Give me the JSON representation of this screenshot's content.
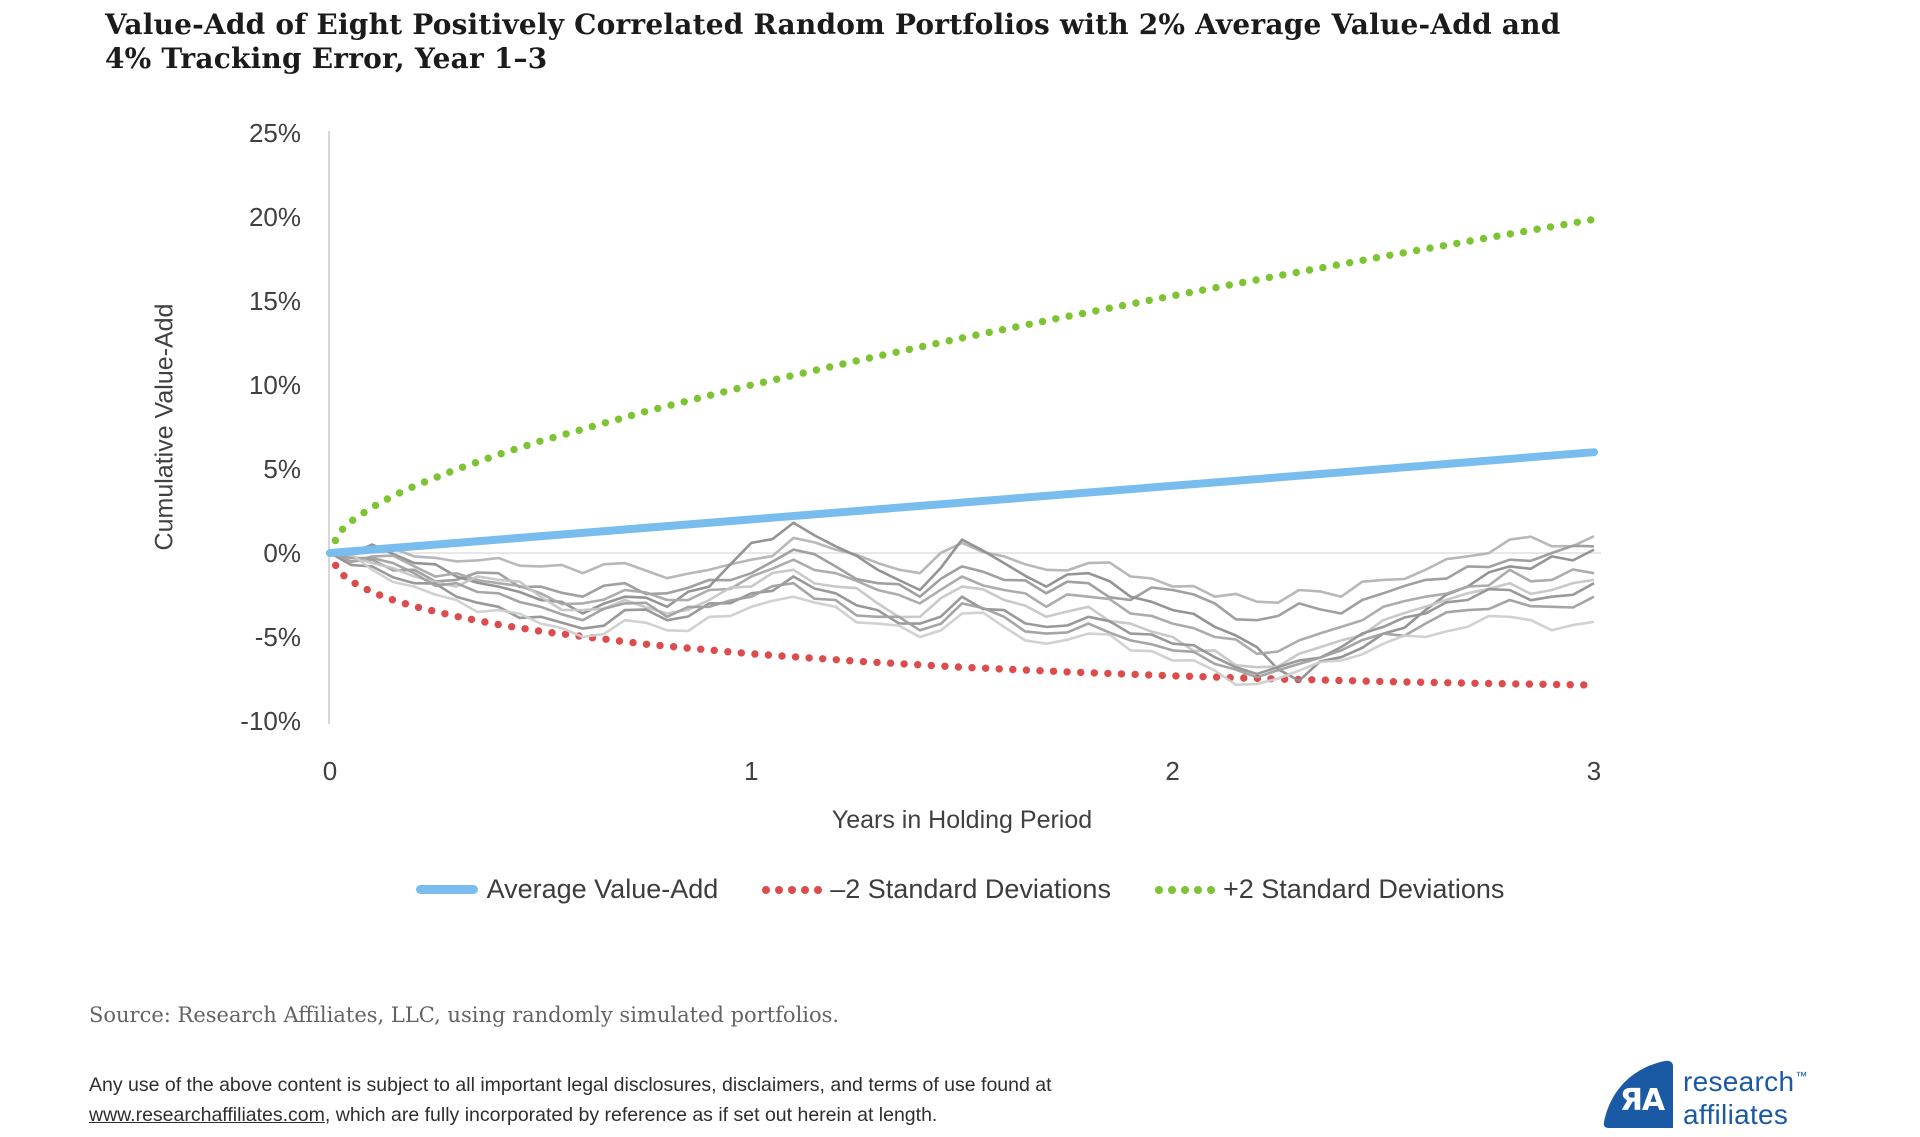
{
  "title": {
    "line1": "Value-Add of Eight Positively Correlated Random Portfolios with 2% Average Value-Add and",
    "line2": "4% Tracking Error, Year 1–3"
  },
  "chart_data": {
    "type": "line",
    "title": "Value-Add of Eight Positively Correlated Random Portfolios with 2% Average Value-Add and 4% Tracking Error, Year 1–3",
    "xlabel": "Years in Holding Period",
    "ylabel": "Cumulative Value-Add",
    "xlim": [
      0,
      3
    ],
    "ylim_pct": [
      -10,
      25
    ],
    "x_ticks": [
      0,
      1,
      2,
      3
    ],
    "y_ticks_pct": [
      25,
      20,
      15,
      10,
      5,
      0,
      -5,
      -10
    ],
    "grid": "zero-line-only",
    "legend_position": "bottom",
    "colors": {
      "grid": "#d9d9d9",
      "axis": "#c6c6c6",
      "tick_text": "#404040"
    },
    "series": [
      {
        "name": "Average Value-Add",
        "style": "solid",
        "color": "#79bcee",
        "x": [
          0,
          3
        ],
        "y_pct": [
          0,
          6
        ]
      },
      {
        "name": "–2 Standard Deviations",
        "style": "dotted",
        "color": "#dc4c4c",
        "t": [
          0,
          0.02,
          0.05,
          0.1,
          0.15,
          0.2,
          0.3,
          0.4,
          0.5,
          0.75,
          1,
          1.25,
          1.5,
          1.75,
          2,
          2.25,
          2.5,
          2.75,
          3
        ],
        "y_pct": [
          0,
          -1.09,
          -1.69,
          -2.33,
          -2.8,
          -3.18,
          -3.78,
          -4.26,
          -4.66,
          -5.43,
          -6.0,
          -6.44,
          -6.8,
          -7.08,
          -7.31,
          -7.5,
          -7.65,
          -7.77,
          -7.86
        ]
      },
      {
        "name": "+2 Standard Deviations",
        "style": "dotted",
        "color": "#7dc433",
        "t": [
          0,
          0.02,
          0.05,
          0.1,
          0.15,
          0.2,
          0.3,
          0.4,
          0.5,
          0.75,
          1,
          1.25,
          1.5,
          1.75,
          2,
          2.25,
          2.5,
          2.75,
          3
        ],
        "y_pct": [
          0,
          1.17,
          1.89,
          2.73,
          3.4,
          3.98,
          4.98,
          5.86,
          6.66,
          8.43,
          10.0,
          11.44,
          12.8,
          14.08,
          15.31,
          16.5,
          17.65,
          18.77,
          19.86
        ]
      }
    ],
    "portfolios": {
      "note": "eight positively correlated simulated portfolios, cumulative value-add in % sampled every 0.1 year",
      "t_step": 0.1,
      "texture_jitter_pct": 0.45,
      "colors": [
        "#b4b4b4",
        "#9b9b9b",
        "#8e8e8e",
        "#a8a8a8",
        "#c6c6c6",
        "#939393",
        "#a0a0a0",
        "#cfcfcf"
      ],
      "series": [
        {
          "values_pct": [
            0,
            0.3,
            -0.2,
            -0.5,
            -0.3,
            -0.8,
            -1.2,
            -0.6,
            -1.5,
            -1.0,
            -0.4,
            0.9,
            0.2,
            -0.6,
            -1.2,
            0.6,
            -0.2,
            -1.0,
            -0.6,
            -1.4,
            -2.0,
            -2.6,
            -2.9,
            -2.2,
            -2.6,
            -1.6,
            -1.0,
            -0.2,
            0.8,
            0.4,
            1.0
          ]
        },
        {
          "values_pct": [
            0,
            -0.4,
            -1.0,
            -1.6,
            -1.2,
            -2.0,
            -2.6,
            -1.8,
            -2.4,
            -1.6,
            -1.2,
            0.2,
            -0.8,
            -1.8,
            -2.6,
            -0.8,
            -1.6,
            -2.4,
            -1.8,
            -2.8,
            -2.2,
            -3.0,
            -4.0,
            -3.0,
            -3.6,
            -2.4,
            -1.6,
            -0.8,
            -0.4,
            0.0,
            0.4
          ]
        },
        {
          "values_pct": [
            0,
            0.5,
            -0.6,
            -1.4,
            -2.0,
            -2.8,
            -3.6,
            -2.6,
            -3.2,
            -2.0,
            0.6,
            1.8,
            0.4,
            -1.0,
            -2.2,
            0.8,
            -0.6,
            -2.0,
            -1.2,
            -2.6,
            -3.4,
            -4.4,
            -5.6,
            -7.6,
            -6.2,
            -4.8,
            -3.4,
            -2.0,
            -0.8,
            -0.2,
            0.2
          ]
        },
        {
          "values_pct": [
            0,
            -0.2,
            -0.8,
            -1.2,
            -1.8,
            -2.4,
            -3.0,
            -2.2,
            -2.8,
            -2.2,
            -1.4,
            -0.4,
            -1.2,
            -2.2,
            -3.0,
            -1.4,
            -2.2,
            -3.2,
            -2.6,
            -3.6,
            -4.2,
            -5.0,
            -6.0,
            -5.2,
            -4.4,
            -3.2,
            -2.6,
            -2.0,
            -1.0,
            -1.6,
            -1.2
          ]
        },
        {
          "values_pct": [
            0,
            -0.6,
            -1.4,
            -2.0,
            -1.6,
            -2.6,
            -3.4,
            -2.8,
            -3.6,
            -2.8,
            -2.0,
            -1.0,
            -2.0,
            -3.0,
            -3.8,
            -2.0,
            -2.8,
            -3.8,
            -3.2,
            -4.2,
            -5.0,
            -5.8,
            -6.8,
            -6.0,
            -5.2,
            -4.0,
            -3.2,
            -2.4,
            -1.8,
            -2.2,
            -1.6
          ]
        },
        {
          "values_pct": [
            0,
            -0.8,
            -1.8,
            -2.6,
            -3.2,
            -3.8,
            -4.5,
            -3.4,
            -4.0,
            -3.0,
            -2.4,
            -1.4,
            -2.4,
            -3.4,
            -4.2,
            -2.6,
            -3.4,
            -4.4,
            -3.8,
            -4.8,
            -5.4,
            -6.2,
            -7.2,
            -6.4,
            -5.6,
            -4.4,
            -3.6,
            -2.8,
            -2.2,
            -2.6,
            -1.8
          ]
        },
        {
          "values_pct": [
            0,
            -0.3,
            -1.2,
            -1.8,
            -2.4,
            -3.2,
            -4.0,
            -3.0,
            -3.8,
            -3.2,
            -2.6,
            -1.8,
            -2.8,
            -3.8,
            -4.6,
            -3.0,
            -3.8,
            -4.8,
            -4.2,
            -5.2,
            -5.8,
            -6.6,
            -7.4,
            -6.6,
            -5.8,
            -4.8,
            -4.2,
            -3.4,
            -2.8,
            -3.2,
            -2.6
          ]
        },
        {
          "values_pct": [
            0,
            -1.0,
            -2.0,
            -2.8,
            -3.4,
            -4.2,
            -5.0,
            -4.0,
            -4.6,
            -3.8,
            -3.2,
            -2.6,
            -3.2,
            -4.2,
            -5.0,
            -3.6,
            -4.4,
            -5.4,
            -4.8,
            -5.8,
            -6.4,
            -7.0,
            -7.8,
            -7.0,
            -6.4,
            -5.4,
            -5.0,
            -4.4,
            -3.8,
            -4.6,
            -4.1
          ]
        }
      ]
    },
    "legend": [
      {
        "label": "Average Value-Add",
        "swatch": "line",
        "color": "#79bcee"
      },
      {
        "label": "–2 Standard Deviations",
        "swatch": "dots",
        "color": "#dc4c4c"
      },
      {
        "label": "+2 Standard Deviations",
        "swatch": "dots",
        "color": "#7dc433"
      }
    ]
  },
  "axis_titles": {
    "y": "Cumulative Value-Add",
    "x": "Years in Holding Period"
  },
  "source": "Source: Research Affiliates, LLC, using randomly simulated portfolios.",
  "disclaimer": {
    "line1": "Any use of the above content is subject to all important legal disclosures, disclaimers, and terms of use found at",
    "link": "www.researchaffiliates.com",
    "line2_rest": ", which are fully incorporated by reference as if set out herein at length."
  },
  "logo": {
    "monogram": "ЯA",
    "word_line1": "research",
    "tm": "™",
    "word_line2": "affiliates",
    "brand_blue": "#1a5aa5"
  }
}
